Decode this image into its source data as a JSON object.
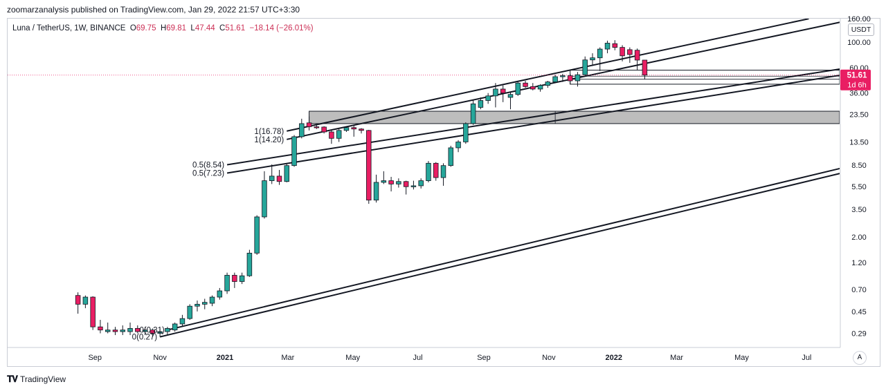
{
  "header": {
    "published": "zoomarzanalysis published on TradingView.com, Jan 29, 2022 21:57 UTC+3:30"
  },
  "legend": {
    "symbol": "Luna / TetherUS, 1W, BINANCE",
    "open_label": "O",
    "open": "69.75",
    "high_label": "H",
    "high": "69.81",
    "low_label": "L",
    "low": "47.44",
    "close_label": "C",
    "close": "51.61",
    "change": "−18.14 (−26.01%)"
  },
  "axis": {
    "unit": "USDT",
    "auto_label": "A",
    "price_tag": "51.61",
    "countdown_tag": "1d 6h"
  },
  "footer": {
    "brand": "TradingView"
  },
  "colors": {
    "up": "#26a69a",
    "down": "#e91e63",
    "line": "#131722",
    "zone": "#b9b9b9"
  },
  "chart_data": {
    "type": "candlestick",
    "title": "Luna / TetherUS, 1W, BINANCE",
    "y_scale": "log",
    "y_ticks": [
      "160.00",
      "100.00",
      "60.00",
      "36.00",
      "23.50",
      "13.50",
      "8.50",
      "5.50",
      "3.50",
      "2.00",
      "1.20",
      "0.70",
      "0.45",
      "0.29"
    ],
    "x_ticks": [
      "Sep",
      "Nov",
      "2021",
      "Mar",
      "May",
      "Jul",
      "Sep",
      "Nov",
      "2022",
      "Mar",
      "May",
      "Jul"
    ],
    "candles": [
      {
        "t": "2020-08-16",
        "o": 0.62,
        "h": 0.66,
        "l": 0.43,
        "c": 0.52
      },
      {
        "t": "2020-08-23",
        "o": 0.52,
        "h": 0.62,
        "l": 0.48,
        "c": 0.6
      },
      {
        "t": "2020-08-30",
        "o": 0.6,
        "h": 0.61,
        "l": 0.31,
        "c": 0.33
      },
      {
        "t": "2020-09-06",
        "o": 0.33,
        "h": 0.38,
        "l": 0.29,
        "c": 0.31
      },
      {
        "t": "2020-09-13",
        "o": 0.3,
        "h": 0.36,
        "l": 0.29,
        "c": 0.31
      },
      {
        "t": "2020-09-20",
        "o": 0.31,
        "h": 0.33,
        "l": 0.28,
        "c": 0.3
      },
      {
        "t": "2020-09-27",
        "o": 0.3,
        "h": 0.34,
        "l": 0.28,
        "c": 0.31
      },
      {
        "t": "2020-10-04",
        "o": 0.3,
        "h": 0.36,
        "l": 0.28,
        "c": 0.32
      },
      {
        "t": "2020-10-11",
        "o": 0.32,
        "h": 0.34,
        "l": 0.29,
        "c": 0.3
      },
      {
        "t": "2020-10-18",
        "o": 0.3,
        "h": 0.33,
        "l": 0.28,
        "c": 0.31
      },
      {
        "t": "2020-10-25",
        "o": 0.31,
        "h": 0.32,
        "l": 0.27,
        "c": 0.29
      },
      {
        "t": "2020-11-01",
        "o": 0.29,
        "h": 0.32,
        "l": 0.27,
        "c": 0.3
      },
      {
        "t": "2020-11-08",
        "o": 0.3,
        "h": 0.33,
        "l": 0.28,
        "c": 0.32
      },
      {
        "t": "2020-11-15",
        "o": 0.31,
        "h": 0.36,
        "l": 0.3,
        "c": 0.35
      },
      {
        "t": "2020-11-22",
        "o": 0.35,
        "h": 0.42,
        "l": 0.33,
        "c": 0.39
      },
      {
        "t": "2020-11-29",
        "o": 0.39,
        "h": 0.52,
        "l": 0.38,
        "c": 0.5
      },
      {
        "t": "2020-12-06",
        "o": 0.5,
        "h": 0.56,
        "l": 0.45,
        "c": 0.52
      },
      {
        "t": "2020-12-13",
        "o": 0.52,
        "h": 0.58,
        "l": 0.47,
        "c": 0.54
      },
      {
        "t": "2020-12-20",
        "o": 0.53,
        "h": 0.62,
        "l": 0.5,
        "c": 0.6
      },
      {
        "t": "2020-12-27",
        "o": 0.6,
        "h": 0.72,
        "l": 0.57,
        "c": 0.68
      },
      {
        "t": "2021-01-03",
        "o": 0.68,
        "h": 0.98,
        "l": 0.64,
        "c": 0.93
      },
      {
        "t": "2021-01-10",
        "o": 0.93,
        "h": 0.98,
        "l": 0.72,
        "c": 0.82
      },
      {
        "t": "2021-01-17",
        "o": 0.82,
        "h": 0.98,
        "l": 0.78,
        "c": 0.92
      },
      {
        "t": "2021-01-24",
        "o": 0.92,
        "h": 1.55,
        "l": 0.9,
        "c": 1.45
      },
      {
        "t": "2021-01-31",
        "o": 1.45,
        "h": 3.1,
        "l": 1.4,
        "c": 3.0
      },
      {
        "t": "2021-02-07",
        "o": 3.0,
        "h": 7.5,
        "l": 2.9,
        "c": 6.2
      },
      {
        "t": "2021-02-14",
        "o": 6.2,
        "h": 8.6,
        "l": 5.8,
        "c": 6.8
      },
      {
        "t": "2021-02-21",
        "o": 6.8,
        "h": 7.7,
        "l": 5.7,
        "c": 6.1
      },
      {
        "t": "2021-02-28",
        "o": 6.1,
        "h": 8.8,
        "l": 6.0,
        "c": 8.4
      },
      {
        "t": "2021-03-07",
        "o": 8.4,
        "h": 15.5,
        "l": 8.2,
        "c": 15.0
      },
      {
        "t": "2021-03-14",
        "o": 15.0,
        "h": 21.5,
        "l": 14.5,
        "c": 19.5
      },
      {
        "t": "2021-03-21",
        "o": 19.8,
        "h": 22.5,
        "l": 17.0,
        "c": 18.3
      },
      {
        "t": "2021-03-28",
        "o": 18.3,
        "h": 19.0,
        "l": 17.5,
        "c": 18.2
      },
      {
        "t": "2021-04-04",
        "o": 18.2,
        "h": 18.5,
        "l": 16.0,
        "c": 16.5
      },
      {
        "t": "2021-04-11",
        "o": 16.5,
        "h": 17.2,
        "l": 13.0,
        "c": 14.5
      },
      {
        "t": "2021-04-18",
        "o": 14.5,
        "h": 17.5,
        "l": 13.5,
        "c": 17.0
      },
      {
        "t": "2021-04-25",
        "o": 17.0,
        "h": 18.5,
        "l": 16.5,
        "c": 18.0
      },
      {
        "t": "2021-05-02",
        "o": 18.0,
        "h": 18.8,
        "l": 15.0,
        "c": 17.5
      },
      {
        "t": "2021-05-09",
        "o": 17.5,
        "h": 17.8,
        "l": 16.0,
        "c": 17.0
      },
      {
        "t": "2021-05-16",
        "o": 17.0,
        "h": 17.2,
        "l": 3.9,
        "c": 4.2
      },
      {
        "t": "2021-05-23",
        "o": 4.2,
        "h": 7.0,
        "l": 4.0,
        "c": 6.0
      },
      {
        "t": "2021-05-30",
        "o": 6.0,
        "h": 7.5,
        "l": 5.8,
        "c": 6.2
      },
      {
        "t": "2021-06-06",
        "o": 6.2,
        "h": 6.7,
        "l": 5.0,
        "c": 5.8
      },
      {
        "t": "2021-06-13",
        "o": 5.8,
        "h": 6.5,
        "l": 5.4,
        "c": 6.1
      },
      {
        "t": "2021-06-20",
        "o": 6.1,
        "h": 6.2,
        "l": 4.7,
        "c": 5.5
      },
      {
        "t": "2021-06-27",
        "o": 5.5,
        "h": 6.2,
        "l": 5.2,
        "c": 5.6
      },
      {
        "t": "2021-07-04",
        "o": 5.6,
        "h": 6.5,
        "l": 5.3,
        "c": 6.2
      },
      {
        "t": "2021-07-11",
        "o": 6.2,
        "h": 9.2,
        "l": 6.0,
        "c": 8.8
      },
      {
        "t": "2021-07-18",
        "o": 8.8,
        "h": 9.0,
        "l": 6.2,
        "c": 6.6
      },
      {
        "t": "2021-07-25",
        "o": 6.6,
        "h": 8.8,
        "l": 5.6,
        "c": 8.4
      },
      {
        "t": "2021-08-01",
        "o": 8.4,
        "h": 12.5,
        "l": 8.2,
        "c": 12.0
      },
      {
        "t": "2021-08-08",
        "o": 12.0,
        "h": 14.0,
        "l": 11.0,
        "c": 13.5
      },
      {
        "t": "2021-08-15",
        "o": 13.5,
        "h": 20.0,
        "l": 13.0,
        "c": 19.5
      },
      {
        "t": "2021-08-22",
        "o": 19.5,
        "h": 31.0,
        "l": 19.0,
        "c": 29.0
      },
      {
        "t": "2021-08-29",
        "o": 27.0,
        "h": 33.0,
        "l": 26.0,
        "c": 31.0
      },
      {
        "t": "2021-09-05",
        "o": 31.0,
        "h": 36.0,
        "l": 29.0,
        "c": 34.0
      },
      {
        "t": "2021-09-12",
        "o": 34.0,
        "h": 44.0,
        "l": 27.0,
        "c": 39.0
      },
      {
        "t": "2021-09-19",
        "o": 39.0,
        "h": 42.0,
        "l": 30.0,
        "c": 36.0
      },
      {
        "t": "2021-09-26",
        "o": 33.0,
        "h": 37.0,
        "l": 26.0,
        "c": 35.0
      },
      {
        "t": "2021-10-03",
        "o": 35.0,
        "h": 45.0,
        "l": 34.0,
        "c": 44.0
      },
      {
        "t": "2021-10-10",
        "o": 44.0,
        "h": 46.0,
        "l": 40.0,
        "c": 41.0
      },
      {
        "t": "2021-10-17",
        "o": 41.0,
        "h": 44.0,
        "l": 38.0,
        "c": 39.0
      },
      {
        "t": "2021-10-24",
        "o": 39.0,
        "h": 43.0,
        "l": 37.0,
        "c": 42.0
      },
      {
        "t": "2021-10-31",
        "o": 42.0,
        "h": 46.0,
        "l": 40.0,
        "c": 45.0
      },
      {
        "t": "2021-11-07",
        "o": 45.0,
        "h": 52.0,
        "l": 44.0,
        "c": 50.0
      },
      {
        "t": "2021-11-14",
        "o": 50.0,
        "h": 53.0,
        "l": 45.0,
        "c": 51.0
      },
      {
        "t": "2021-11-21",
        "o": 51.0,
        "h": 53.0,
        "l": 43.0,
        "c": 46.0
      },
      {
        "t": "2021-11-28",
        "o": 46.0,
        "h": 55.0,
        "l": 41.0,
        "c": 52.0
      },
      {
        "t": "2021-12-05",
        "o": 52.0,
        "h": 75.0,
        "l": 50.0,
        "c": 70.0
      },
      {
        "t": "2021-12-12",
        "o": 70.0,
        "h": 80.0,
        "l": 62.0,
        "c": 73.0
      },
      {
        "t": "2021-12-19",
        "o": 73.0,
        "h": 90.0,
        "l": 56.0,
        "c": 87.0
      },
      {
        "t": "2021-12-26",
        "o": 87.0,
        "h": 103.0,
        "l": 80.0,
        "c": 98.0
      },
      {
        "t": "2022-01-02",
        "o": 97.0,
        "h": 104.0,
        "l": 85.0,
        "c": 90.0
      },
      {
        "t": "2022-01-09",
        "o": 90.0,
        "h": 94.0,
        "l": 68.0,
        "c": 76.0
      },
      {
        "t": "2022-01-16",
        "o": 86.0,
        "h": 90.0,
        "l": 66.0,
        "c": 78.0
      },
      {
        "t": "2022-01-23",
        "o": 85.0,
        "h": 88.0,
        "l": 57.0,
        "c": 69.75
      },
      {
        "t": "2022-01-30",
        "o": 69.75,
        "h": 69.81,
        "l": 47.44,
        "c": 51.61
      }
    ],
    "channel_lines": [
      {
        "t1": "2020-11-01",
        "p1": 0.27,
        "t2": "2022-09-25",
        "p2": 9.5
      },
      {
        "t1": "2020-11-08",
        "p1": 0.31,
        "t2": "2022-09-25",
        "p2": 10.5
      },
      {
        "t1": "2021-01-03",
        "p1": 7.23,
        "t2": "2022-09-25",
        "p2": 62.0
      },
      {
        "t1": "2021-01-03",
        "p1": 8.54,
        "t2": "2022-09-25",
        "p2": 70.0
      },
      {
        "t1": "2021-02-28",
        "p1": 14.2,
        "t2": "2022-08-07",
        "p2": 153.0
      },
      {
        "t1": "2021-02-28",
        "p1": 16.78,
        "t2": "2022-07-03",
        "p2": 160.0
      }
    ],
    "fib_labels": [
      {
        "text": "1(16.78)",
        "t": "2021-02-28",
        "p": 16.78
      },
      {
        "text": "1(14.20)",
        "t": "2021-02-28",
        "p": 14.2
      },
      {
        "text": "0.5(8.54)",
        "t": "2021-01-03",
        "p": 8.54
      },
      {
        "text": "0.5(7.23)",
        "t": "2021-01-03",
        "p": 7.23
      },
      {
        "text": "0(0.31)",
        "t": "2020-11-08",
        "p": 0.31
      },
      {
        "text": "0(0.27)",
        "t": "2020-11-01",
        "p": 0.27
      }
    ],
    "zones": [
      {
        "t1": "2021-03-21",
        "t2": "2022-09-25",
        "p_top": 25.0,
        "p_bottom": 19.5
      },
      {
        "t1": "2021-11-21",
        "t2": "2022-09-25",
        "p_top": 57.0,
        "p_bottom": 43.0
      }
    ],
    "last_price": 51.61
  }
}
